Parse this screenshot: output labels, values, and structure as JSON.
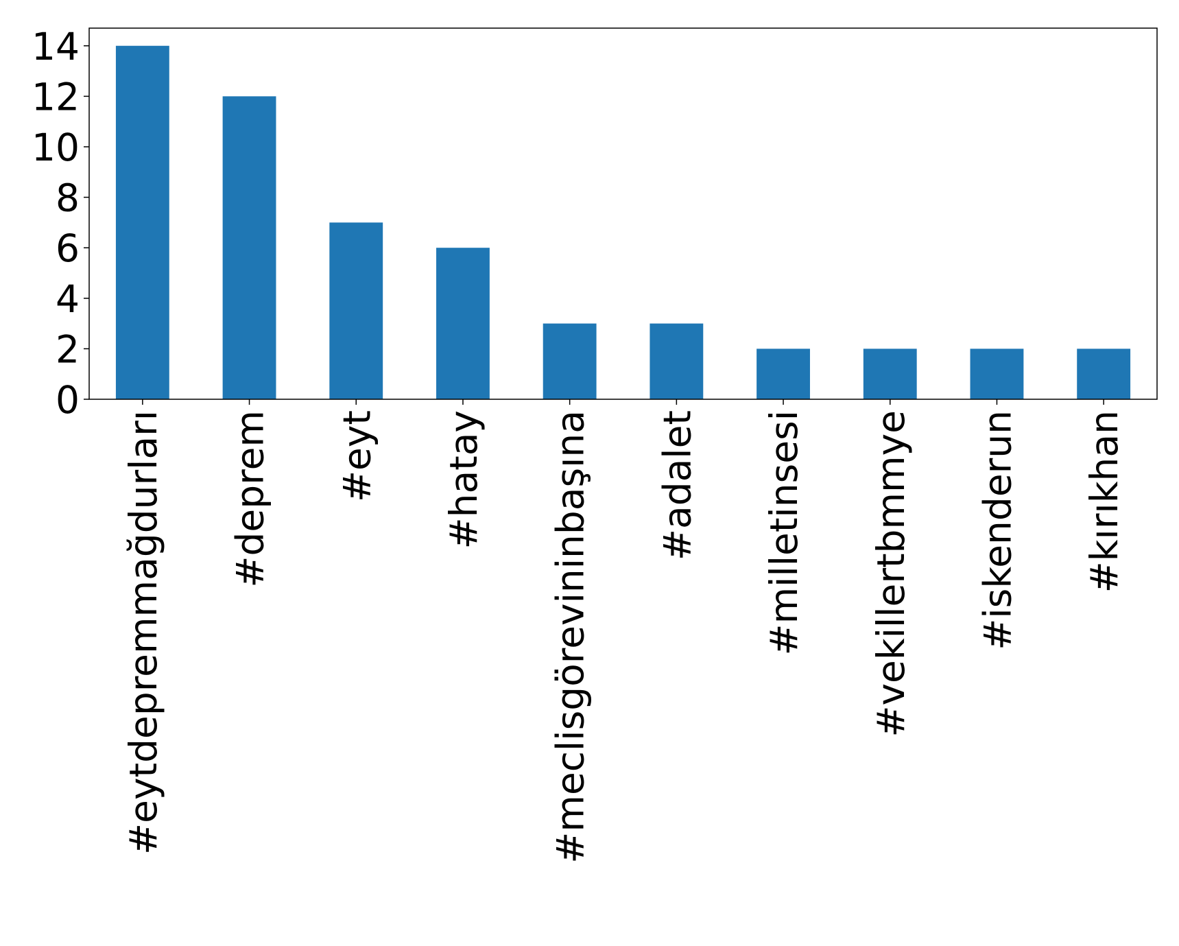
{
  "chart_data": {
    "type": "bar",
    "categories": [
      "#eytdepremmağdurları",
      "#deprem",
      "#eyt",
      "#hatay",
      "#meclisgörevininbaşına",
      "#adalet",
      "#milletinsesi",
      "#vekillertbmmye",
      "#iskenderun",
      "#kırıkhan"
    ],
    "values": [
      14,
      12,
      7,
      6,
      3,
      3,
      2,
      2,
      2,
      2
    ],
    "color": "#1f77b4",
    "ylim": [
      0,
      14.7
    ],
    "yticks": [
      0,
      2,
      4,
      6,
      8,
      10,
      12,
      14
    ],
    "grid": false
  }
}
